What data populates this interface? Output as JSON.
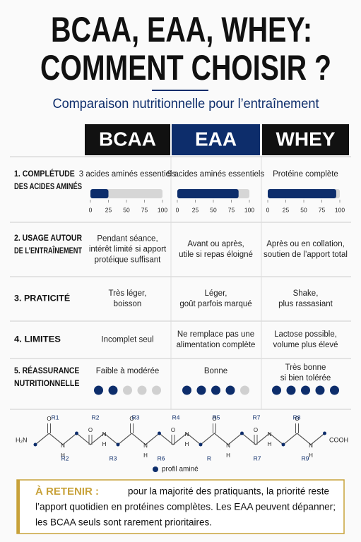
{
  "header": {
    "title_lines": [
      "BCAA, EAA, WHEY:",
      "COMMENT CHOISIR ?"
    ],
    "subtitle": "Comparaison nutritionnelle pour l’entraînement"
  },
  "table": {
    "columns": [
      "BCAA",
      "EAA",
      "WHEY"
    ],
    "rows": [
      {
        "label": [
          "1. COMPLÉTUDE",
          "DES ACIDES AMINÉS"
        ],
        "cells": [
          [
            "3 acides aminés essentiels"
          ],
          [
            "9 acides aminés essentiels"
          ],
          [
            "Protéine complète"
          ]
        ],
        "bars": [
          25,
          85,
          95
        ],
        "ticks": [
          0,
          25,
          50,
          75,
          100
        ]
      },
      {
        "label": [
          "2. USAGE AUTOUR",
          "DE L’ENTRAÎNEMENT"
        ],
        "cells": [
          [
            "Pendant séance,",
            "intérêt limité si apport",
            "protéique suffisant"
          ],
          [
            "Avant ou après,",
            "utile si repas éloigné"
          ],
          [
            "Après ou en collation,",
            "soutien de l’apport total"
          ]
        ]
      },
      {
        "label": [
          "3. PRATICITÉ"
        ],
        "cells": [
          [
            "Très léger,",
            "boisson"
          ],
          [
            "Léger,",
            "goût parfois marqué"
          ],
          [
            "Shake,",
            "plus rassasiant"
          ]
        ]
      },
      {
        "label": [
          "4. LIMITES"
        ],
        "cells": [
          [
            "Incomplet seul"
          ],
          [
            "Ne remplace pas une",
            "alimentation complète"
          ],
          [
            "Lactose possible,",
            "volume plus élevé"
          ]
        ]
      },
      {
        "label": [
          "5. RÉASSURANCE",
          "NUTRITIONNELLE"
        ],
        "cells": [
          [
            "Faible à modérée"
          ],
          [
            "Bonne"
          ],
          [
            "Très bonne",
            "si bien tolérée"
          ]
        ],
        "scores": [
          2,
          4,
          5
        ],
        "score_max": 5
      }
    ]
  },
  "molecule": {
    "start": "H₂N",
    "end": "COOH",
    "o": "O",
    "n": "N",
    "h": "H",
    "top_r": [
      "R1",
      "R2",
      "R3",
      "R4",
      "R5",
      "R7",
      "R8"
    ],
    "bottom_r": [
      "R2",
      "R3",
      "R6",
      "R",
      "R7",
      "R9"
    ],
    "legend": "profil aminé"
  },
  "retenir": {
    "label": "À RETENIR :",
    "lines": [
      "pour la majorité des pratiquants, la priorité reste",
      "l’apport quotidien en protéines complètes. Les EAA peuvent dépanner;",
      "les BCAA seuls sont rarement prioritaires."
    ]
  }
}
